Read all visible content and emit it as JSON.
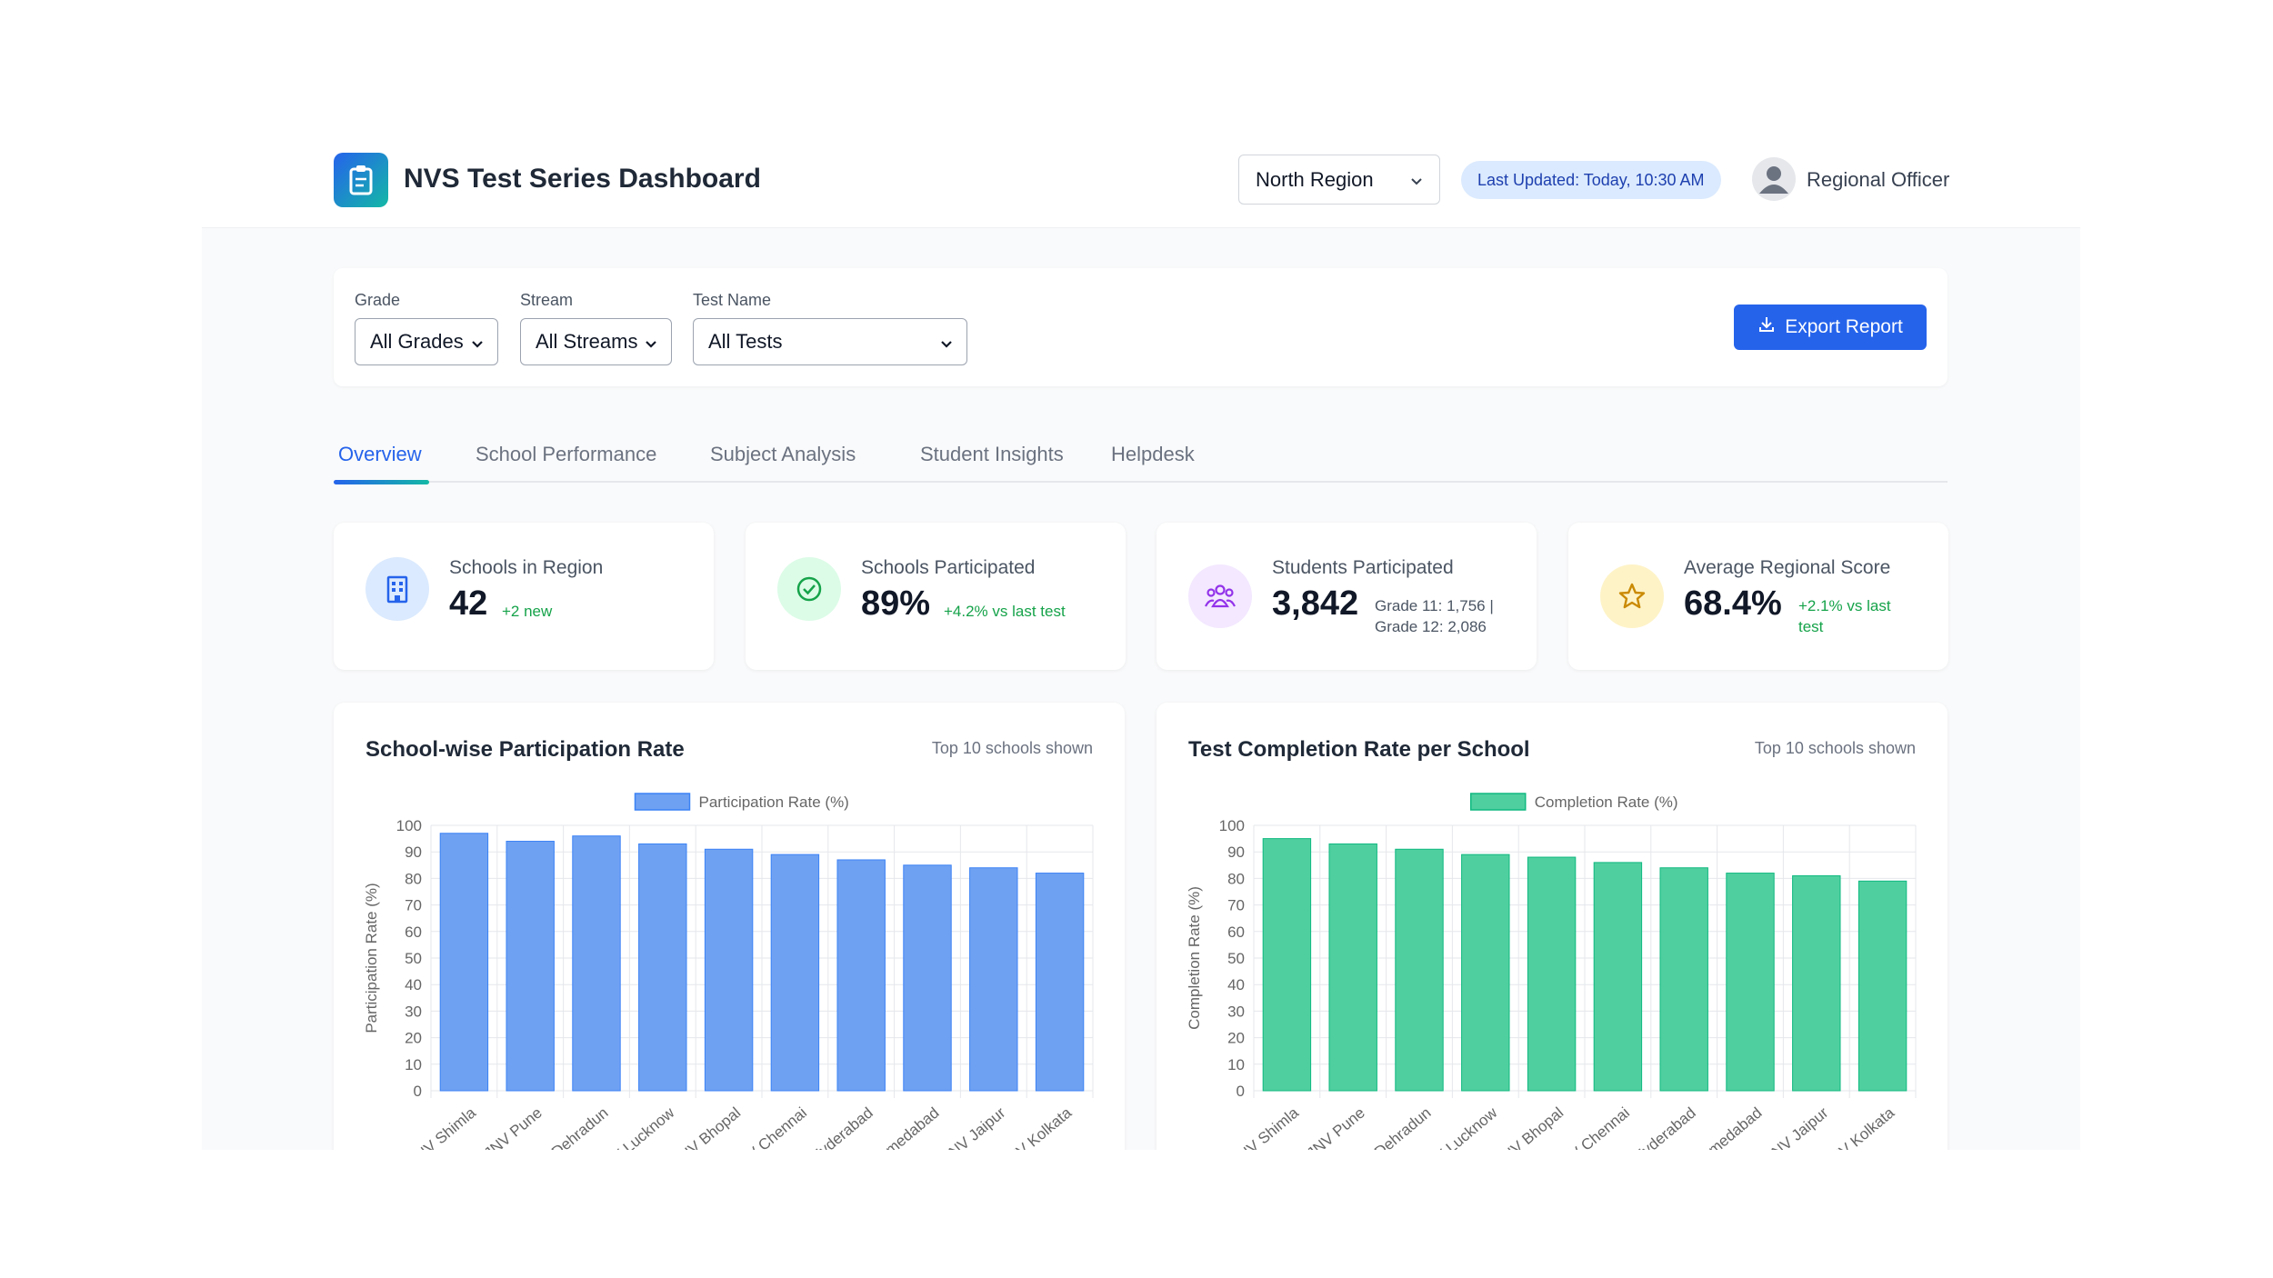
{
  "header": {
    "title": "NVS Test Series Dashboard",
    "region": "North Region",
    "last_updated": "Last Updated: Today, 10:30 AM",
    "user": "Regional Officer"
  },
  "filters": {
    "grade_label": "Grade",
    "grade_value": "All Grades",
    "stream_label": "Stream",
    "stream_value": "All Streams",
    "test_label": "Test Name",
    "test_value": "All Tests",
    "export_label": "Export Report"
  },
  "tabs": [
    "Overview",
    "School Performance",
    "Subject Analysis",
    "Student Insights",
    "Helpdesk"
  ],
  "stats": [
    {
      "label": "Schools in Region",
      "value": "42",
      "sub": "+2 new"
    },
    {
      "label": "Schools Participated",
      "value": "89%",
      "sub": "+4.2% vs last test"
    },
    {
      "label": "Students Participated",
      "value": "3,842",
      "sub1": "Grade 11: 1,756 |",
      "sub2": "Grade 12: 2,086"
    },
    {
      "label": "Average Regional Score",
      "value": "68.4%",
      "sub1": "+2.1% vs last",
      "sub2": "test"
    }
  ],
  "cards": [
    {
      "title": "School-wise Participation Rate",
      "note": "Top 10 schools shown"
    },
    {
      "title": "Test Completion Rate per School",
      "note": "Top 10 schools shown"
    }
  ],
  "colors": {
    "primary": "#2563eb",
    "participation_bar": "#6fa1f2",
    "completion_bar": "#4fcf9f",
    "success": "#16a34a"
  },
  "chart_data": [
    {
      "type": "bar",
      "categories": [
        "JNV Shimla",
        "JNV Pune",
        "JNV Dehradun",
        "JNV Lucknow",
        "JNV Bhopal",
        "JNV Chennai",
        "JNV Hyderabad",
        "JNV Ahmedabad",
        "JNV Jaipur",
        "JNV Kolkata"
      ],
      "series": [
        {
          "name": "Participation Rate (%)",
          "values": [
            97,
            94,
            96,
            93,
            91,
            89,
            87,
            85,
            84,
            82
          ]
        }
      ],
      "ylabel": "Participation Rate (%)",
      "ylim": [
        0,
        100
      ],
      "yticks": [
        "0",
        "10",
        "20",
        "30",
        "40",
        "50",
        "60",
        "70",
        "80",
        "90",
        "100"
      ],
      "legend": "top",
      "grid": true,
      "color": "#6fa1f2",
      "border": "#3b82f6"
    },
    {
      "type": "bar",
      "categories": [
        "JNV Shimla",
        "JNV Pune",
        "JNV Dehradun",
        "JNV Lucknow",
        "JNV Bhopal",
        "JNV Chennai",
        "JNV Hyderabad",
        "JNV Ahmedabad",
        "JNV Jaipur",
        "JNV Kolkata"
      ],
      "series": [
        {
          "name": "Completion Rate (%)",
          "values": [
            95,
            93,
            91,
            89,
            88,
            86,
            84,
            82,
            81,
            79
          ]
        }
      ],
      "ylabel": "Completion Rate (%)",
      "ylim": [
        0,
        100
      ],
      "yticks": [
        "0",
        "10",
        "20",
        "30",
        "40",
        "50",
        "60",
        "70",
        "80",
        "90",
        "100"
      ],
      "legend": "top",
      "grid": true,
      "color": "#4fcf9f",
      "border": "#10b981"
    }
  ]
}
